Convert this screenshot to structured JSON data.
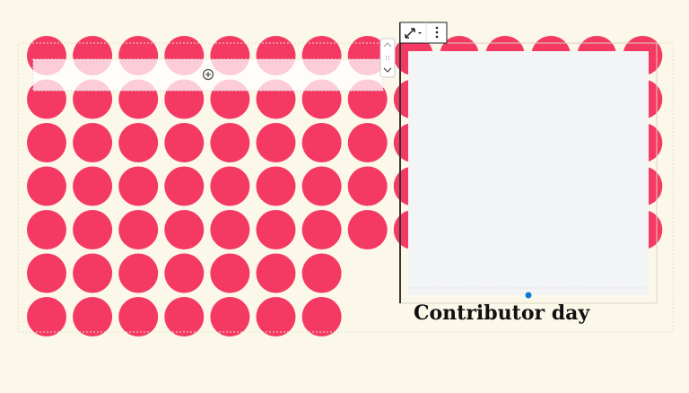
{
  "caption": "Contributor day"
}
